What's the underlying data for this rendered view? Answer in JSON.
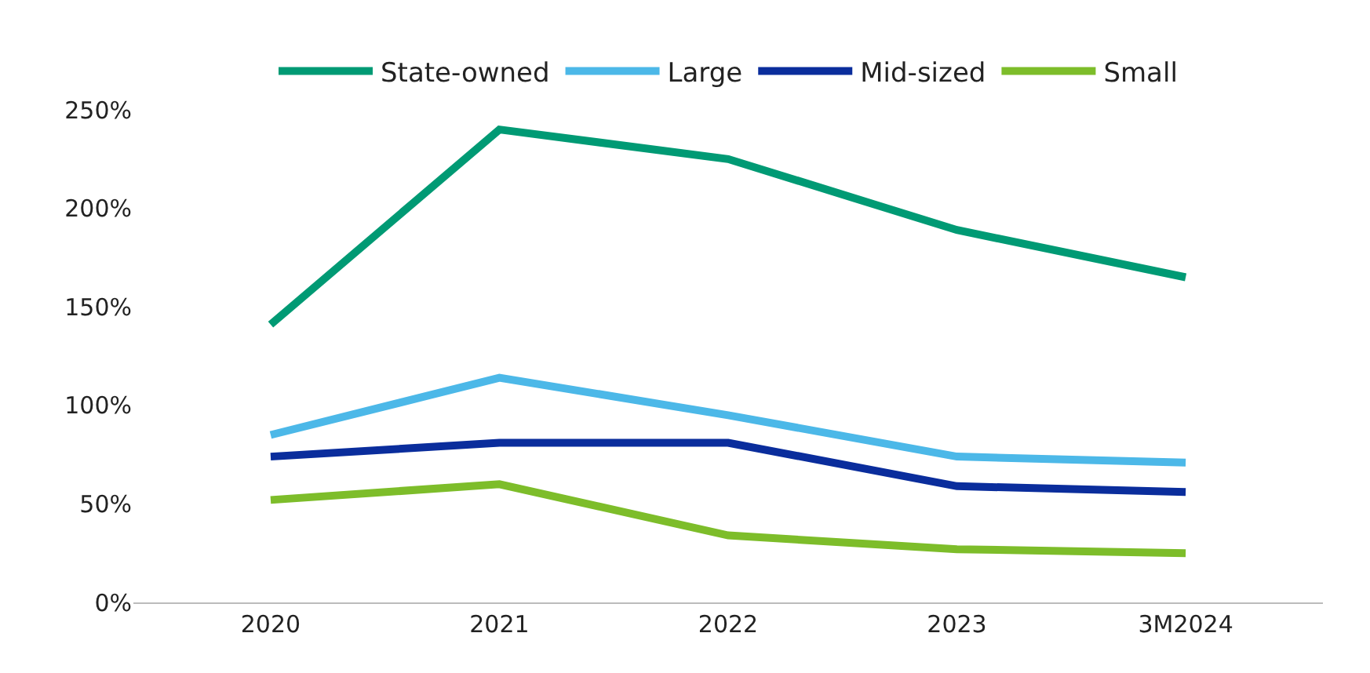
{
  "chart_data": {
    "type": "line",
    "categories": [
      "2020",
      "2021",
      "2022",
      "2023",
      "3M2024"
    ],
    "series": [
      {
        "name": "State-owned",
        "color": "#009a74",
        "values": [
          141,
          240,
          225,
          189,
          165
        ]
      },
      {
        "name": "Large",
        "color": "#4cb8e8",
        "values": [
          85,
          114,
          95,
          74,
          71
        ]
      },
      {
        "name": "Mid-sized",
        "color": "#0a2d9c",
        "values": [
          74,
          81,
          81,
          59,
          56
        ]
      },
      {
        "name": "Small",
        "color": "#7dbd2a",
        "values": [
          52,
          60,
          34,
          27,
          25
        ]
      }
    ],
    "ylim": [
      0,
      250
    ],
    "yticks": [
      {
        "value": 0,
        "label": "0%"
      },
      {
        "value": 50,
        "label": "50%"
      },
      {
        "value": 100,
        "label": "100%"
      },
      {
        "value": 150,
        "label": "150%"
      },
      {
        "value": 200,
        "label": "200%"
      },
      {
        "value": 250,
        "label": "250%"
      }
    ],
    "legend": "top",
    "marker": "none",
    "line_style": "solid"
  }
}
